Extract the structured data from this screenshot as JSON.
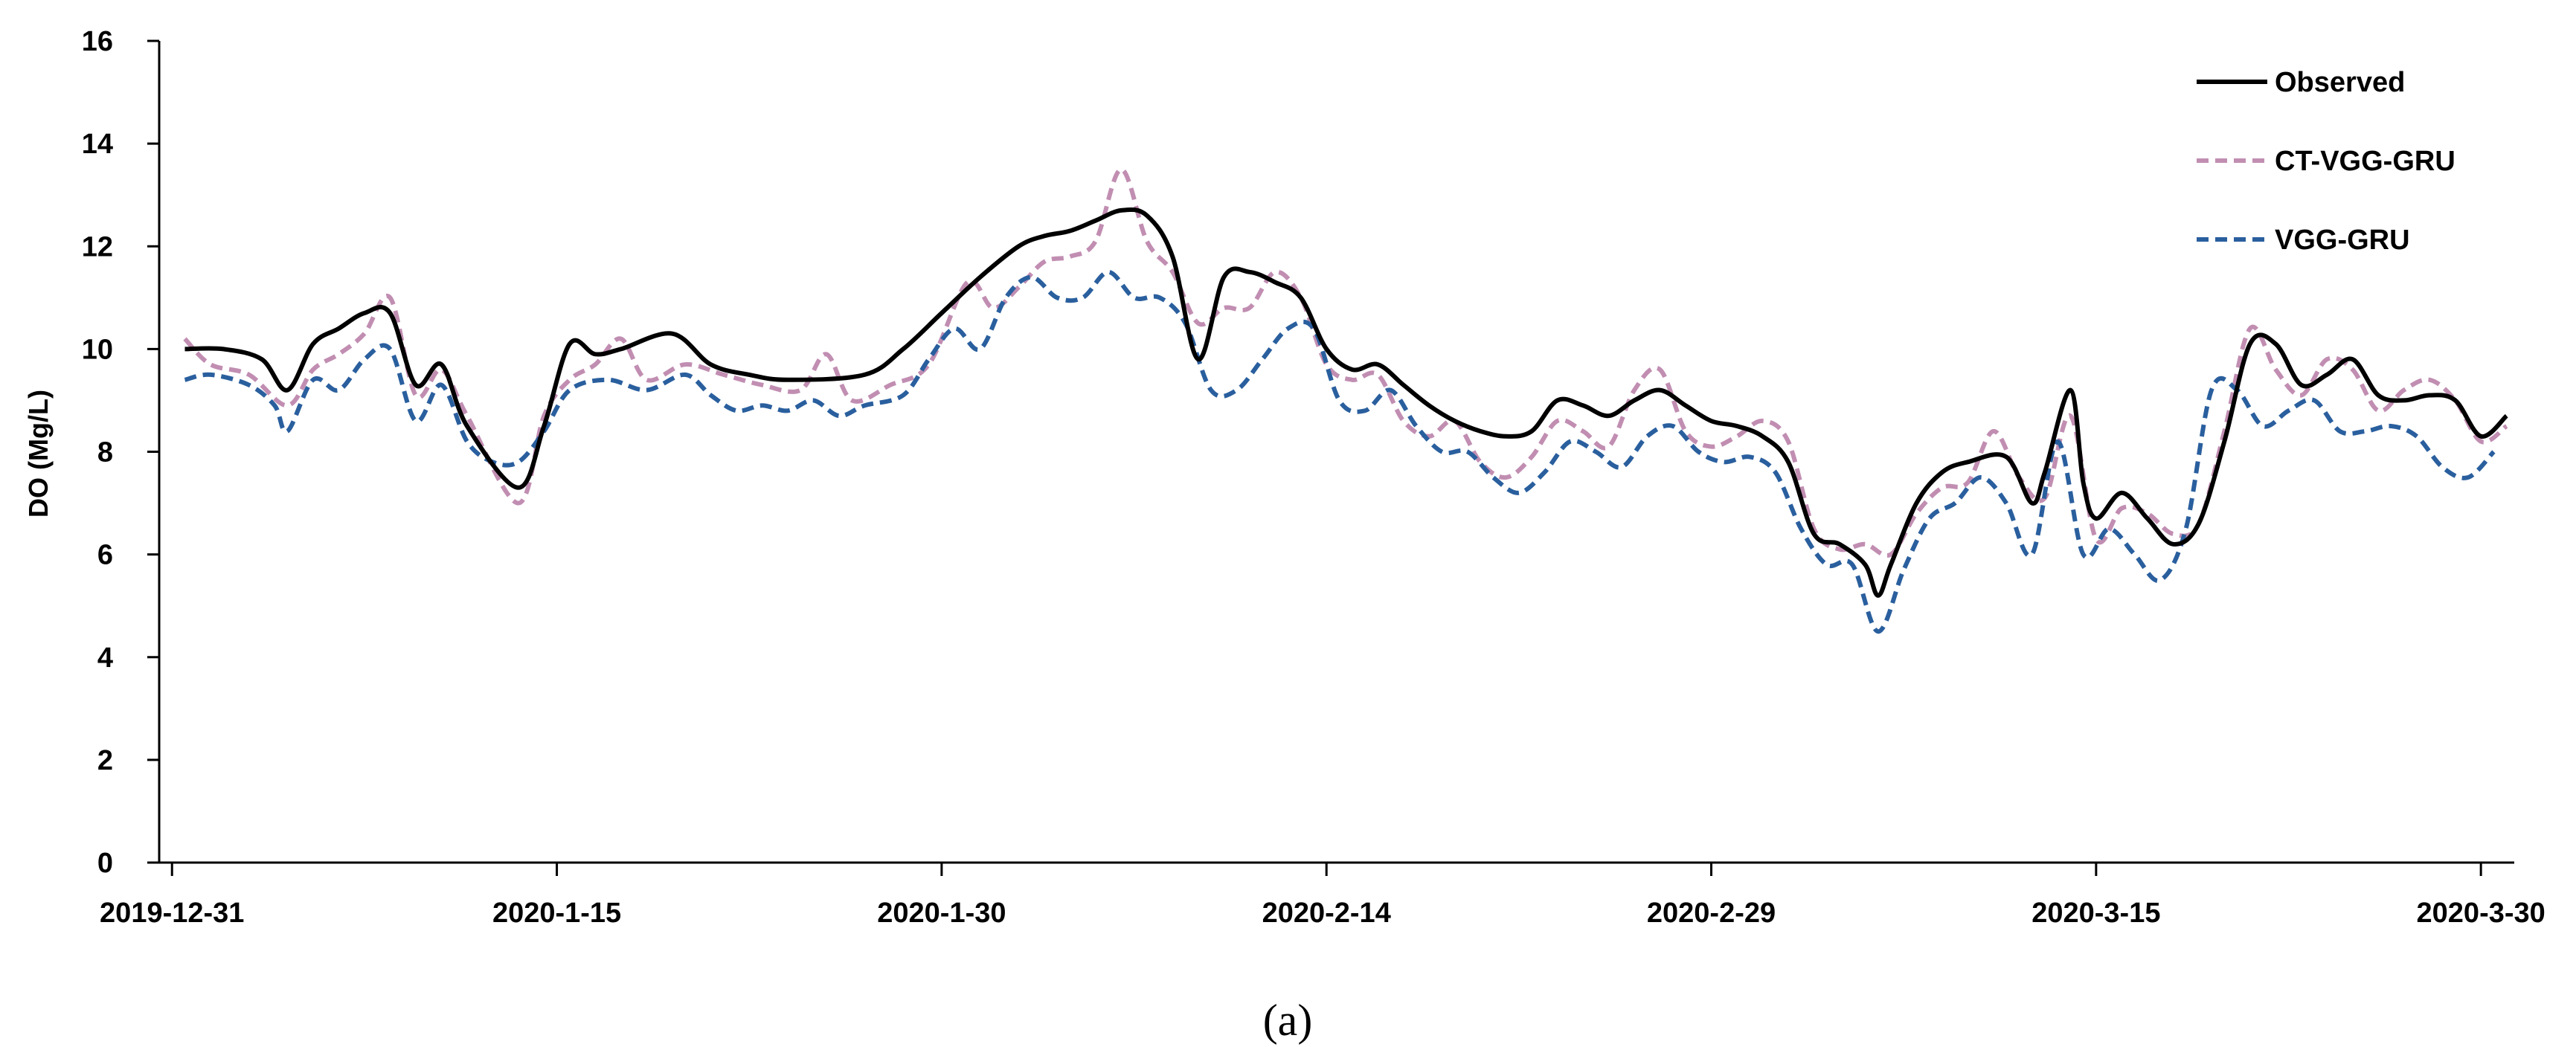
{
  "chart_data": {
    "type": "line",
    "ylabel": "DO (Mg/L)",
    "ylim": [
      0,
      16
    ],
    "yticks": [
      "0",
      "2",
      "4",
      "6",
      "8",
      "10",
      "12",
      "14",
      "16"
    ],
    "xlim": [
      -0.5,
      91.3
    ],
    "xticks": [
      {
        "x": 0,
        "label": "2019-12-31"
      },
      {
        "x": 15,
        "label": "2020-1-15"
      },
      {
        "x": 30,
        "label": "2020-1-30"
      },
      {
        "x": 45,
        "label": "2020-2-14"
      },
      {
        "x": 60,
        "label": "2020-2-29"
      },
      {
        "x": 75,
        "label": "2020-3-15"
      },
      {
        "x": 90,
        "label": "2020-3-30"
      }
    ],
    "panel_label": "(a)",
    "legend_position": "top-right",
    "grid": false,
    "series": [
      {
        "name": "Observed",
        "color": "#000000",
        "dash": "solid",
        "points": [
          [
            0.5,
            10
          ],
          [
            2,
            10
          ],
          [
            3.5,
            9.8
          ],
          [
            4.5,
            9.2
          ],
          [
            5.5,
            10.1
          ],
          [
            6.5,
            10.4
          ],
          [
            7.5,
            10.7
          ],
          [
            8.5,
            10.7
          ],
          [
            9.5,
            9.3
          ],
          [
            10.5,
            9.7
          ],
          [
            11.5,
            8.5
          ],
          [
            13.5,
            7.3
          ],
          [
            14.5,
            8.5
          ],
          [
            15.5,
            10.1
          ],
          [
            16.5,
            9.9
          ],
          [
            17.5,
            10
          ],
          [
            19.5,
            10.3
          ],
          [
            21,
            9.7
          ],
          [
            22.5,
            9.5
          ],
          [
            24,
            9.4
          ],
          [
            27,
            9.5
          ],
          [
            28.5,
            10
          ],
          [
            30,
            10.7
          ],
          [
            31.5,
            11.4
          ],
          [
            33,
            12
          ],
          [
            34,
            12.2
          ],
          [
            35,
            12.3
          ],
          [
            36,
            12.5
          ],
          [
            37,
            12.7
          ],
          [
            38,
            12.6
          ],
          [
            39,
            11.8
          ],
          [
            40,
            9.8
          ],
          [
            41,
            11.4
          ],
          [
            42,
            11.5
          ],
          [
            43,
            11.3
          ],
          [
            44,
            11
          ],
          [
            45,
            10
          ],
          [
            46,
            9.6
          ],
          [
            47,
            9.7
          ],
          [
            48,
            9.3
          ],
          [
            49,
            8.9
          ],
          [
            50,
            8.6
          ],
          [
            51,
            8.4
          ],
          [
            52,
            8.3
          ],
          [
            53,
            8.4
          ],
          [
            54,
            9
          ],
          [
            55,
            8.9
          ],
          [
            56,
            8.7
          ],
          [
            57,
            9
          ],
          [
            58,
            9.2
          ],
          [
            59,
            8.9
          ],
          [
            60,
            8.6
          ],
          [
            61,
            8.5
          ],
          [
            62,
            8.3
          ],
          [
            63,
            7.8
          ],
          [
            64,
            6.4
          ],
          [
            65,
            6.2
          ],
          [
            66,
            5.8
          ],
          [
            66.5,
            5.2
          ],
          [
            67,
            5.8
          ],
          [
            68,
            7
          ],
          [
            69,
            7.6
          ],
          [
            70,
            7.8
          ],
          [
            71.5,
            7.9
          ],
          [
            72.5,
            7
          ],
          [
            73,
            7.6
          ],
          [
            74,
            9.2
          ],
          [
            74.5,
            7.4
          ],
          [
            75,
            6.7
          ],
          [
            76,
            7.2
          ],
          [
            77,
            6.7
          ],
          [
            78,
            6.2
          ],
          [
            79,
            6.6
          ],
          [
            80,
            8.2
          ],
          [
            81,
            10.1
          ],
          [
            82,
            10.1
          ],
          [
            83,
            9.3
          ],
          [
            84,
            9.5
          ],
          [
            85,
            9.8
          ],
          [
            86,
            9.1
          ],
          [
            87,
            9
          ],
          [
            88,
            9.1
          ],
          [
            89,
            9
          ],
          [
            90,
            8.3
          ],
          [
            91,
            8.7
          ]
        ]
      },
      {
        "name": "CT-VGG-GRU",
        "color": "#c18eb2",
        "dash": "dashed",
        "points": [
          [
            0.5,
            10.2
          ],
          [
            1.5,
            9.7
          ],
          [
            3,
            9.5
          ],
          [
            4.5,
            8.9
          ],
          [
            5.5,
            9.6
          ],
          [
            6.5,
            9.9
          ],
          [
            7.5,
            10.3
          ],
          [
            8.5,
            11
          ],
          [
            9.5,
            9.1
          ],
          [
            10.5,
            9.6
          ],
          [
            11.5,
            8.7
          ],
          [
            13.5,
            7
          ],
          [
            14.5,
            8.7
          ],
          [
            15.5,
            9.4
          ],
          [
            16.5,
            9.7
          ],
          [
            17.5,
            10.2
          ],
          [
            18.5,
            9.4
          ],
          [
            20,
            9.7
          ],
          [
            21.5,
            9.5
          ],
          [
            23,
            9.3
          ],
          [
            24.5,
            9.2
          ],
          [
            25.5,
            9.9
          ],
          [
            26.5,
            9
          ],
          [
            28,
            9.3
          ],
          [
            29.5,
            9.7
          ],
          [
            31,
            11.3
          ],
          [
            32,
            10.8
          ],
          [
            33,
            11.2
          ],
          [
            34,
            11.7
          ],
          [
            35,
            11.8
          ],
          [
            36,
            12.1
          ],
          [
            37,
            13.5
          ],
          [
            38,
            12.1
          ],
          [
            39,
            11.5
          ],
          [
            40,
            10.5
          ],
          [
            41,
            10.8
          ],
          [
            42,
            10.8
          ],
          [
            43,
            11.5
          ],
          [
            44,
            11
          ],
          [
            45,
            9.7
          ],
          [
            46,
            9.4
          ],
          [
            47,
            9.5
          ],
          [
            48,
            8.6
          ],
          [
            49,
            8.3
          ],
          [
            50,
            8.6
          ],
          [
            51,
            7.8
          ],
          [
            52,
            7.5
          ],
          [
            53,
            7.9
          ],
          [
            54,
            8.6
          ],
          [
            55,
            8.4
          ],
          [
            56,
            8.1
          ],
          [
            57,
            9.2
          ],
          [
            58,
            9.6
          ],
          [
            59,
            8.4
          ],
          [
            60,
            8.1
          ],
          [
            61,
            8.3
          ],
          [
            62,
            8.6
          ],
          [
            63,
            8.2
          ],
          [
            64,
            6.5
          ],
          [
            65,
            6.1
          ],
          [
            66,
            6.2
          ],
          [
            67,
            6
          ],
          [
            68,
            6.8
          ],
          [
            69,
            7.3
          ],
          [
            70,
            7.4
          ],
          [
            71,
            8.4
          ],
          [
            72,
            7.5
          ],
          [
            73,
            7.1
          ],
          [
            74,
            8.7
          ],
          [
            75,
            6.3
          ],
          [
            76,
            6.9
          ],
          [
            77,
            6.8
          ],
          [
            78,
            6.4
          ],
          [
            79,
            6.6
          ],
          [
            80,
            8.4
          ],
          [
            81,
            10.4
          ],
          [
            82,
            9.6
          ],
          [
            83,
            9.1
          ],
          [
            84,
            9.8
          ],
          [
            85,
            9.6
          ],
          [
            86,
            8.8
          ],
          [
            87,
            9.2
          ],
          [
            88,
            9.4
          ],
          [
            89,
            9
          ],
          [
            90,
            8.2
          ],
          [
            91,
            8.5
          ]
        ]
      },
      {
        "name": "VGG-GRU",
        "color": "#2a5f9e",
        "dash": "dashed",
        "points": [
          [
            0.5,
            9.4
          ],
          [
            1.5,
            9.5
          ],
          [
            3,
            9.3
          ],
          [
            4,
            8.9
          ],
          [
            4.5,
            8.4
          ],
          [
            5.5,
            9.4
          ],
          [
            6.5,
            9.2
          ],
          [
            7.5,
            9.8
          ],
          [
            8.5,
            10
          ],
          [
            9.5,
            8.6
          ],
          [
            10.5,
            9.3
          ],
          [
            11.5,
            8.2
          ],
          [
            12.5,
            7.8
          ],
          [
            13.5,
            7.8
          ],
          [
            14.5,
            8.4
          ],
          [
            15.5,
            9.2
          ],
          [
            17,
            9.4
          ],
          [
            18.5,
            9.2
          ],
          [
            20,
            9.5
          ],
          [
            21,
            9.1
          ],
          [
            22,
            8.8
          ],
          [
            23,
            8.9
          ],
          [
            24,
            8.8
          ],
          [
            25,
            9
          ],
          [
            26,
            8.7
          ],
          [
            27,
            8.9
          ],
          [
            28.5,
            9.1
          ],
          [
            29.5,
            9.8
          ],
          [
            30.5,
            10.4
          ],
          [
            31.5,
            10
          ],
          [
            32.5,
            11
          ],
          [
            33.5,
            11.4
          ],
          [
            34.5,
            11
          ],
          [
            35.5,
            11
          ],
          [
            36.5,
            11.5
          ],
          [
            37.5,
            11
          ],
          [
            38.5,
            11
          ],
          [
            39.5,
            10.5
          ],
          [
            40.5,
            9.2
          ],
          [
            41.5,
            9.2
          ],
          [
            42.5,
            9.8
          ],
          [
            43.5,
            10.4
          ],
          [
            44.5,
            10.4
          ],
          [
            45.5,
            9
          ],
          [
            46.5,
            8.8
          ],
          [
            47.5,
            9.2
          ],
          [
            48.5,
            8.5
          ],
          [
            49.5,
            8
          ],
          [
            50.5,
            8
          ],
          [
            51.5,
            7.5
          ],
          [
            52.5,
            7.2
          ],
          [
            53.5,
            7.6
          ],
          [
            54.5,
            8.2
          ],
          [
            55.5,
            8
          ],
          [
            56.5,
            7.7
          ],
          [
            57.5,
            8.3
          ],
          [
            58.5,
            8.5
          ],
          [
            59.5,
            8
          ],
          [
            60.5,
            7.8
          ],
          [
            61.5,
            7.9
          ],
          [
            62.5,
            7.6
          ],
          [
            63.5,
            6.5
          ],
          [
            64.5,
            5.8
          ],
          [
            65.5,
            5.8
          ],
          [
            66.5,
            4.5
          ],
          [
            67.5,
            5.7
          ],
          [
            68.5,
            6.7
          ],
          [
            69.5,
            7
          ],
          [
            70.5,
            7.5
          ],
          [
            71.5,
            7
          ],
          [
            72.5,
            6
          ],
          [
            73.5,
            8.2
          ],
          [
            74.5,
            6
          ],
          [
            75.5,
            6.5
          ],
          [
            76.5,
            6
          ],
          [
            77.5,
            5.5
          ],
          [
            78.5,
            6.5
          ],
          [
            79.5,
            9.2
          ],
          [
            80.5,
            9.2
          ],
          [
            81.5,
            8.5
          ],
          [
            82.5,
            8.8
          ],
          [
            83.5,
            9
          ],
          [
            84.5,
            8.4
          ],
          [
            85.5,
            8.4
          ],
          [
            86.5,
            8.5
          ],
          [
            87.5,
            8.3
          ],
          [
            88.5,
            7.7
          ],
          [
            89.5,
            7.5
          ],
          [
            90.5,
            8
          ]
        ]
      }
    ]
  }
}
